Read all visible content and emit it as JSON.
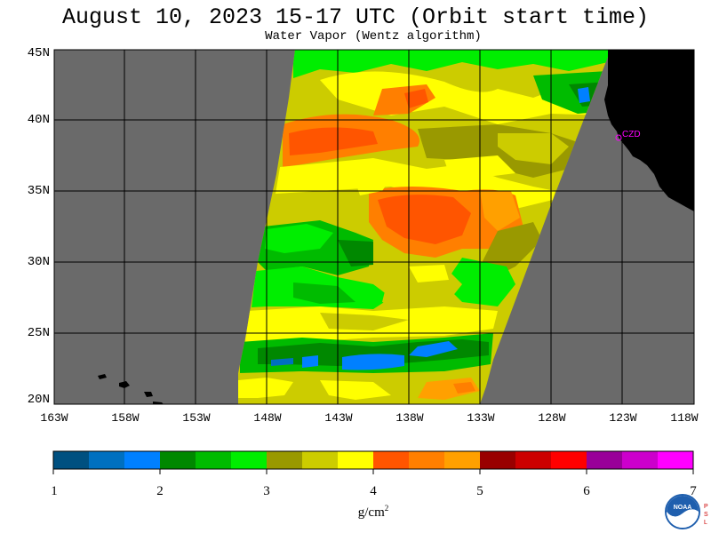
{
  "title": "August 10, 2023  15-17 UTC  (Orbit start time)",
  "subtitle": "Water Vapor (Wentz algorithm)",
  "lat_labels": [
    "45N",
    "40N",
    "35N",
    "30N",
    "25N",
    "20N"
  ],
  "lon_labels": [
    "163W",
    "158W",
    "153W",
    "148W",
    "143W",
    "138W",
    "133W",
    "128W",
    "123W",
    "118W"
  ],
  "station_label": "CZD",
  "colorbar": {
    "tick_labels": [
      "1",
      "2",
      "3",
      "4",
      "5",
      "6",
      "7"
    ],
    "unit_label": "g/cm",
    "unit_exponent": "2",
    "colors": [
      "#005080",
      "#0070c0",
      "#0080ff",
      "#008800",
      "#00bb00",
      "#00ee00",
      "#999900",
      "#cccc00",
      "#ffff00",
      "#ff5500",
      "#ff7f00",
      "#ffa000",
      "#990000",
      "#cc0000",
      "#ff0000",
      "#990099",
      "#cc00cc",
      "#ff00ff"
    ]
  },
  "logo": {
    "name": "noaa-logo",
    "text": "NOAA"
  },
  "psl_text": "P S L",
  "colors": {
    "ocean_no_data": "#6a6a6a",
    "land": "#000000",
    "grid": "#000000",
    "station_marker": "#ff00ff"
  }
}
